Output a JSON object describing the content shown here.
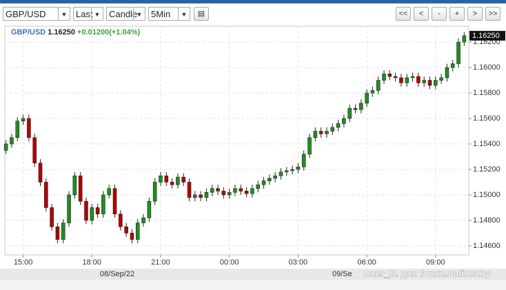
{
  "toolbar": {
    "symbol": "GBP/USD",
    "price_type": "Last",
    "chart_type": "Candle",
    "interval": "5Min",
    "nav_buttons": [
      "<<",
      "<",
      "-",
      "+",
      ">",
      ">>"
    ]
  },
  "chart_data": {
    "type": "candlestick",
    "legend": {
      "symbol": "GBP/USD",
      "price": "1.16250",
      "change": "+0.01200(+1.04%)"
    },
    "price_tag": "1.16250",
    "date_labels": [
      "08/Sep/22",
      "09/Se"
    ],
    "watermark": "Олег_В. для forum.onliner.by",
    "up_color": "#1f8f1f",
    "down_color": "#b30000",
    "grid": true,
    "xlim": [
      14.2,
      34.45
    ],
    "xticks": [
      {
        "value": 15,
        "label": "15:00"
      },
      {
        "value": 18,
        "label": "18:00"
      },
      {
        "value": 21,
        "label": "21:00"
      },
      {
        "value": 24,
        "label": "00:00"
      },
      {
        "value": 27,
        "label": "03:00"
      },
      {
        "value": 30,
        "label": "06:00"
      },
      {
        "value": 33,
        "label": "09:00"
      }
    ],
    "ylim": [
      1.14529,
      1.16325
    ],
    "yticks": [
      {
        "value": 1.146,
        "label": "1.14600"
      },
      {
        "value": 1.148,
        "label": "1.14800"
      },
      {
        "value": 1.15,
        "label": "1.15000"
      },
      {
        "value": 1.152,
        "label": "1.15200"
      },
      {
        "value": 1.154,
        "label": "1.15400"
      },
      {
        "value": 1.156,
        "label": "1.15600"
      },
      {
        "value": 1.158,
        "label": "1.15800"
      },
      {
        "value": 1.16,
        "label": "1.16000"
      },
      {
        "value": 1.162,
        "label": "1.16200"
      }
    ],
    "x": [
      14.25,
      14.5,
      14.75,
      15,
      15.25,
      15.5,
      15.75,
      16,
      16.25,
      16.5,
      16.75,
      17,
      17.25,
      17.5,
      17.75,
      18,
      18.25,
      18.5,
      18.75,
      19,
      19.25,
      19.5,
      19.75,
      20,
      20.25,
      20.5,
      20.75,
      21,
      21.25,
      21.5,
      21.75,
      22,
      22.25,
      22.5,
      22.75,
      23,
      23.25,
      23.5,
      23.75,
      24,
      24.25,
      24.5,
      24.75,
      25,
      25.25,
      25.5,
      25.75,
      26,
      26.25,
      26.5,
      26.75,
      27,
      27.25,
      27.5,
      27.75,
      28,
      28.25,
      28.5,
      28.75,
      29,
      29.25,
      29.5,
      29.75,
      30,
      30.25,
      30.5,
      30.75,
      31,
      31.25,
      31.5,
      31.75,
      32,
      32.25,
      32.5,
      32.75,
      33,
      33.25,
      33.5,
      33.75,
      34,
      34.25
    ],
    "open": [
      1.1535,
      1.154,
      1.1545,
      1.1558,
      1.156,
      1.1545,
      1.1525,
      1.151,
      1.149,
      1.1475,
      1.1465,
      1.1478,
      1.15,
      1.1515,
      1.1495,
      1.148,
      1.149,
      1.1485,
      1.15,
      1.1505,
      1.1485,
      1.1475,
      1.147,
      1.1465,
      1.1478,
      1.1482,
      1.1495,
      1.151,
      1.1515,
      1.151,
      1.1508,
      1.1514,
      1.151,
      1.1498,
      1.15,
      1.1498,
      1.1502,
      1.1505,
      1.1503,
      1.15,
      1.1502,
      1.1505,
      1.1503,
      1.1501,
      1.1505,
      1.1508,
      1.1511,
      1.1513,
      1.1515,
      1.1518,
      1.1519,
      1.152,
      1.1522,
      1.1532,
      1.1545,
      1.155,
      1.1548,
      1.155,
      1.1553,
      1.1556,
      1.156,
      1.1568,
      1.1567,
      1.1572,
      1.158,
      1.1582,
      1.159,
      1.1595,
      1.1593,
      1.1592,
      1.1588,
      1.1592,
      1.1593,
      1.1588,
      1.159,
      1.1586,
      1.159,
      1.1592,
      1.16,
      1.1603,
      1.162
    ],
    "high": [
      1.1543,
      1.1548,
      1.1561,
      1.1563,
      1.1563,
      1.1548,
      1.1528,
      1.1513,
      1.1493,
      1.1478,
      1.1481,
      1.1503,
      1.1518,
      1.1518,
      1.1498,
      1.1493,
      1.1493,
      1.1503,
      1.1508,
      1.1508,
      1.1488,
      1.1478,
      1.1473,
      1.1481,
      1.1485,
      1.1498,
      1.1513,
      1.1518,
      1.1518,
      1.1513,
      1.1517,
      1.1517,
      1.1513,
      1.1503,
      1.1503,
      1.1505,
      1.1508,
      1.1508,
      1.1506,
      1.1505,
      1.1508,
      1.1508,
      1.1506,
      1.1508,
      1.1511,
      1.1514,
      1.1516,
      1.1518,
      1.1521,
      1.1522,
      1.1523,
      1.1525,
      1.1535,
      1.1548,
      1.1553,
      1.1553,
      1.1553,
      1.1556,
      1.1559,
      1.1563,
      1.1571,
      1.1571,
      1.1575,
      1.1583,
      1.1585,
      1.1593,
      1.1598,
      1.1598,
      1.1596,
      1.1595,
      1.1595,
      1.1596,
      1.1596,
      1.1593,
      1.1593,
      1.1593,
      1.1595,
      1.1603,
      1.1606,
      1.1623,
      1.1628
    ],
    "low": [
      1.1532,
      1.1537,
      1.1542,
      1.1555,
      1.1542,
      1.1522,
      1.1507,
      1.1487,
      1.1472,
      1.1462,
      1.1462,
      1.1475,
      1.1497,
      1.1492,
      1.1477,
      1.1477,
      1.1482,
      1.1482,
      1.1497,
      1.1482,
      1.1472,
      1.1467,
      1.1462,
      1.1462,
      1.1475,
      1.1479,
      1.1492,
      1.1507,
      1.1507,
      1.1505,
      1.1505,
      1.1507,
      1.1495,
      1.1495,
      1.1495,
      1.1495,
      1.1499,
      1.15,
      1.1497,
      1.1497,
      1.1499,
      1.15,
      1.1498,
      1.1498,
      1.1502,
      1.1505,
      1.1508,
      1.151,
      1.1512,
      1.1515,
      1.1516,
      1.1517,
      1.1519,
      1.1529,
      1.1542,
      1.1545,
      1.1545,
      1.1547,
      1.155,
      1.1553,
      1.1557,
      1.1564,
      1.1564,
      1.1569,
      1.1577,
      1.1579,
      1.1587,
      1.159,
      1.1589,
      1.1585,
      1.1585,
      1.1589,
      1.1585,
      1.1585,
      1.1583,
      1.1583,
      1.1587,
      1.1589,
      1.1597,
      1.16,
      1.1617
    ],
    "close": [
      1.154,
      1.1545,
      1.1558,
      1.156,
      1.1545,
      1.1525,
      1.151,
      1.149,
      1.1475,
      1.1465,
      1.1478,
      1.15,
      1.1515,
      1.1495,
      1.148,
      1.149,
      1.1485,
      1.15,
      1.1505,
      1.1485,
      1.1475,
      1.147,
      1.1465,
      1.1478,
      1.1482,
      1.1495,
      1.151,
      1.1515,
      1.151,
      1.1508,
      1.1514,
      1.151,
      1.1498,
      1.15,
      1.1498,
      1.1502,
      1.1505,
      1.1503,
      1.15,
      1.1502,
      1.1505,
      1.1503,
      1.1501,
      1.1505,
      1.1508,
      1.1511,
      1.1513,
      1.1515,
      1.1518,
      1.1519,
      1.152,
      1.1522,
      1.1532,
      1.1545,
      1.155,
      1.1548,
      1.155,
      1.1553,
      1.1556,
      1.156,
      1.1568,
      1.1567,
      1.1572,
      1.158,
      1.1582,
      1.159,
      1.1595,
      1.1593,
      1.1592,
      1.1588,
      1.1592,
      1.1593,
      1.1588,
      1.159,
      1.1586,
      1.159,
      1.1592,
      1.16,
      1.1603,
      1.162,
      1.1625
    ]
  }
}
